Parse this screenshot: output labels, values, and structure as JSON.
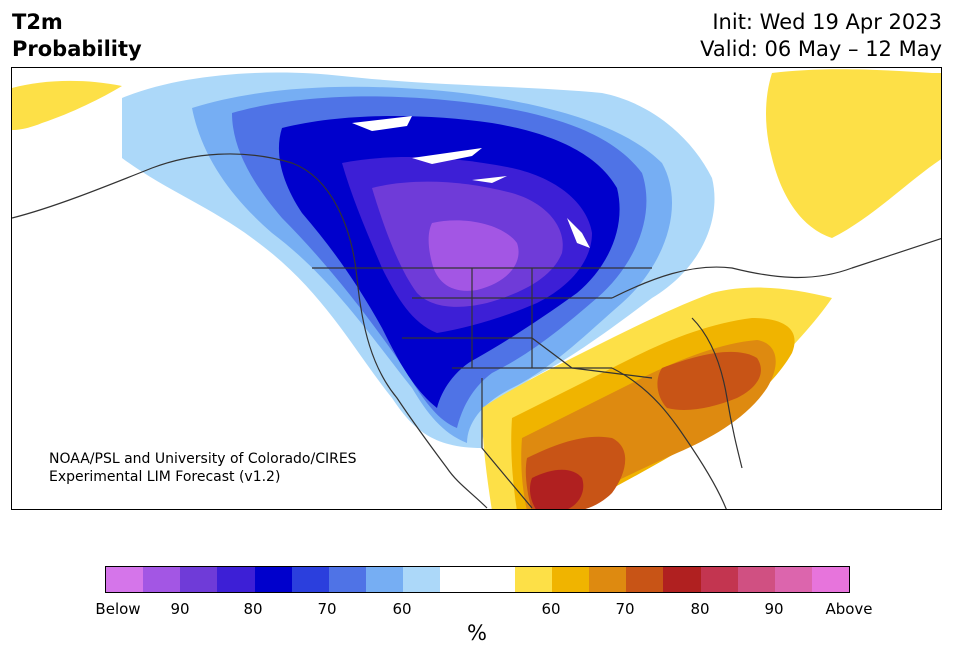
{
  "header": {
    "variable": "T2m",
    "kind": "Probability",
    "init": "Init: Wed 19 Apr 2023",
    "valid": "Valid: 06 May – 12 May"
  },
  "credit": {
    "line1": "NOAA/PSL and University of Colorado/CIRES",
    "line2": "Experimental LIM Forecast (v1.2)"
  },
  "colorbar": {
    "colors": [
      "#d575ea",
      "#a356e4",
      "#6f3bd8",
      "#3d1fd6",
      "#0000cc",
      "#2b3fdd",
      "#4f73e6",
      "#76aef3",
      "#acd8f9",
      "#ffffff",
      "#ffffff",
      "#fde047",
      "#f0b400",
      "#de8a10",
      "#c85416",
      "#b02020",
      "#c33550",
      "#d05082",
      "#dc65ad",
      "#e774dc"
    ],
    "ticks": [
      "Below",
      "90",
      "80",
      "70",
      "60",
      "60",
      "70",
      "80",
      "90",
      "Above"
    ],
    "unit": "%"
  },
  "legend_colors": {
    "below_strong": "#a356e4",
    "below_mid": "#3d1fd6",
    "below_weak": "#acd8f9",
    "above_weak": "#fde047",
    "above_mid": "#de8a10",
    "above_strong": "#b02020"
  }
}
